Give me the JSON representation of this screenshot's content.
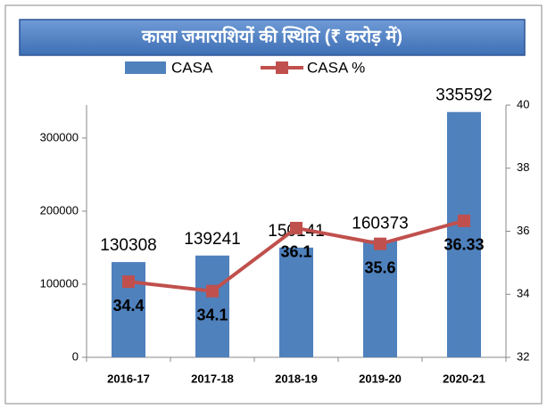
{
  "chart_data": {
    "type": "bar_line",
    "title": "कासा जमाराशियों की स्थिति (₹ करोड़ में)",
    "categories": [
      "2016-17",
      "2017-18",
      "2018-19",
      "2019-20",
      "2020-21"
    ],
    "series": [
      {
        "name": "CASA",
        "type": "bar",
        "color": "#4f81bd",
        "values": [
          130308,
          139241,
          150141,
          160373,
          335592
        ]
      },
      {
        "name": "CASA %",
        "type": "line",
        "color": "#c0504d",
        "axis": "y2",
        "values": [
          34.4,
          34.1,
          36.1,
          35.6,
          36.33
        ]
      }
    ],
    "ylim": [
      0,
      345000
    ],
    "yticks": [
      0,
      100000,
      200000,
      300000
    ],
    "y2lim": [
      32,
      40
    ],
    "y2ticks": [
      32,
      34,
      36,
      38,
      40
    ],
    "legend": "top"
  }
}
